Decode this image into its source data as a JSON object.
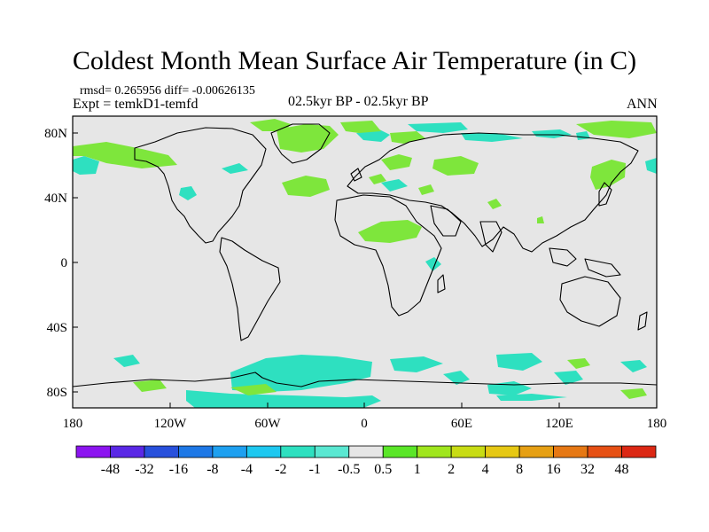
{
  "title": "Coldest Month Mean Surface Air Temperature (in C)",
  "stats_line": "rmsd= 0.265956  diff= -0.00626135",
  "experiment_line": "Expt = temkD1-temfd",
  "period_label": "02.5kyr BP - 02.5kyr BP",
  "season_label": "ANN",
  "colors": {
    "ocean_land_background": "#e6e6e6",
    "teal": "#2ee0c0",
    "light_green": "#7ee63c",
    "coastline": "#000000"
  },
  "map": {
    "projection": "cylindrical-equidistant",
    "lon_ticks": [
      "180",
      "120W",
      "60W",
      "0",
      "60E",
      "120E",
      "180"
    ],
    "lat_ticks": [
      "80N",
      "40N",
      "0",
      "40S",
      "80S"
    ]
  },
  "colorbar": {
    "labels": [
      "-48",
      "-32",
      "-16",
      "-8",
      "-4",
      "-2",
      "-1",
      "-0.5",
      "0.5",
      "1",
      "2",
      "4",
      "8",
      "16",
      "32",
      "48"
    ],
    "colors": [
      "#8c14f0",
      "#5a28e6",
      "#2850dc",
      "#1e78e6",
      "#1ea0f0",
      "#1ec8f0",
      "#2ee0c0",
      "#5ae8d2",
      "#e6e6e6",
      "#5ae628",
      "#a0e61e",
      "#c8dc14",
      "#e6c814",
      "#e6a014",
      "#e67814",
      "#e65014",
      "#dc2814"
    ]
  }
}
